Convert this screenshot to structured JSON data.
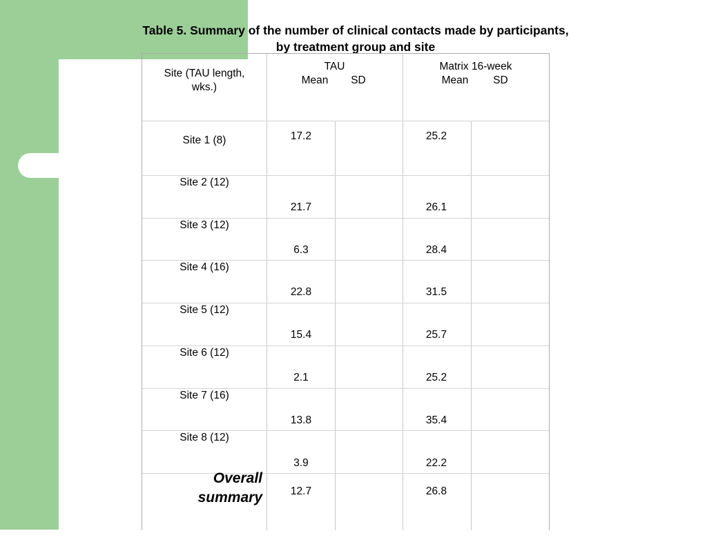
{
  "title": {
    "line1": "Table 5. Summary of the number of clinical contacts made by participants,",
    "line2": "by treatment group and site"
  },
  "header": {
    "site": "Site (TAU length, wks.)",
    "tau": "TAU",
    "tau_mean": "Mean",
    "tau_sd": "SD",
    "matrix": "Matrix 16-week",
    "matrix_mean": "Mean",
    "matrix_sd": "SD"
  },
  "rows": [
    {
      "site": "Site 1 (8)",
      "tau_mean": "17.2",
      "tau_sd": "",
      "matrix_mean": "25.2",
      "matrix_sd": ""
    },
    {
      "site": "Site 2 (12)",
      "tau_mean": "21.7",
      "tau_sd": "",
      "matrix_mean": "26.1",
      "matrix_sd": ""
    },
    {
      "site": "Site 3 (12)",
      "tau_mean": "6.3",
      "tau_sd": "",
      "matrix_mean": "28.4",
      "matrix_sd": ""
    },
    {
      "site": "Site 4 (16)",
      "tau_mean": "22.8",
      "tau_sd": "",
      "matrix_mean": "31.5",
      "matrix_sd": ""
    },
    {
      "site": "Site 5 (12)",
      "tau_mean": "15.4",
      "tau_sd": "",
      "matrix_mean": "25.7",
      "matrix_sd": ""
    },
    {
      "site": "Site 6 (12)",
      "tau_mean": "2.1",
      "tau_sd": "",
      "matrix_mean": "25.2",
      "matrix_sd": ""
    },
    {
      "site": "Site 7 (16)",
      "tau_mean": "13.8",
      "tau_sd": "",
      "matrix_mean": "35.4",
      "matrix_sd": ""
    },
    {
      "site": "Site 8 (12)",
      "tau_mean": "3.9",
      "tau_sd": "",
      "matrix_mean": "22.2",
      "matrix_sd": ""
    }
  ],
  "overall": {
    "line1": "Overall",
    "line2": "summary",
    "tau_mean": "12.7",
    "matrix_mean": "26.8"
  }
}
